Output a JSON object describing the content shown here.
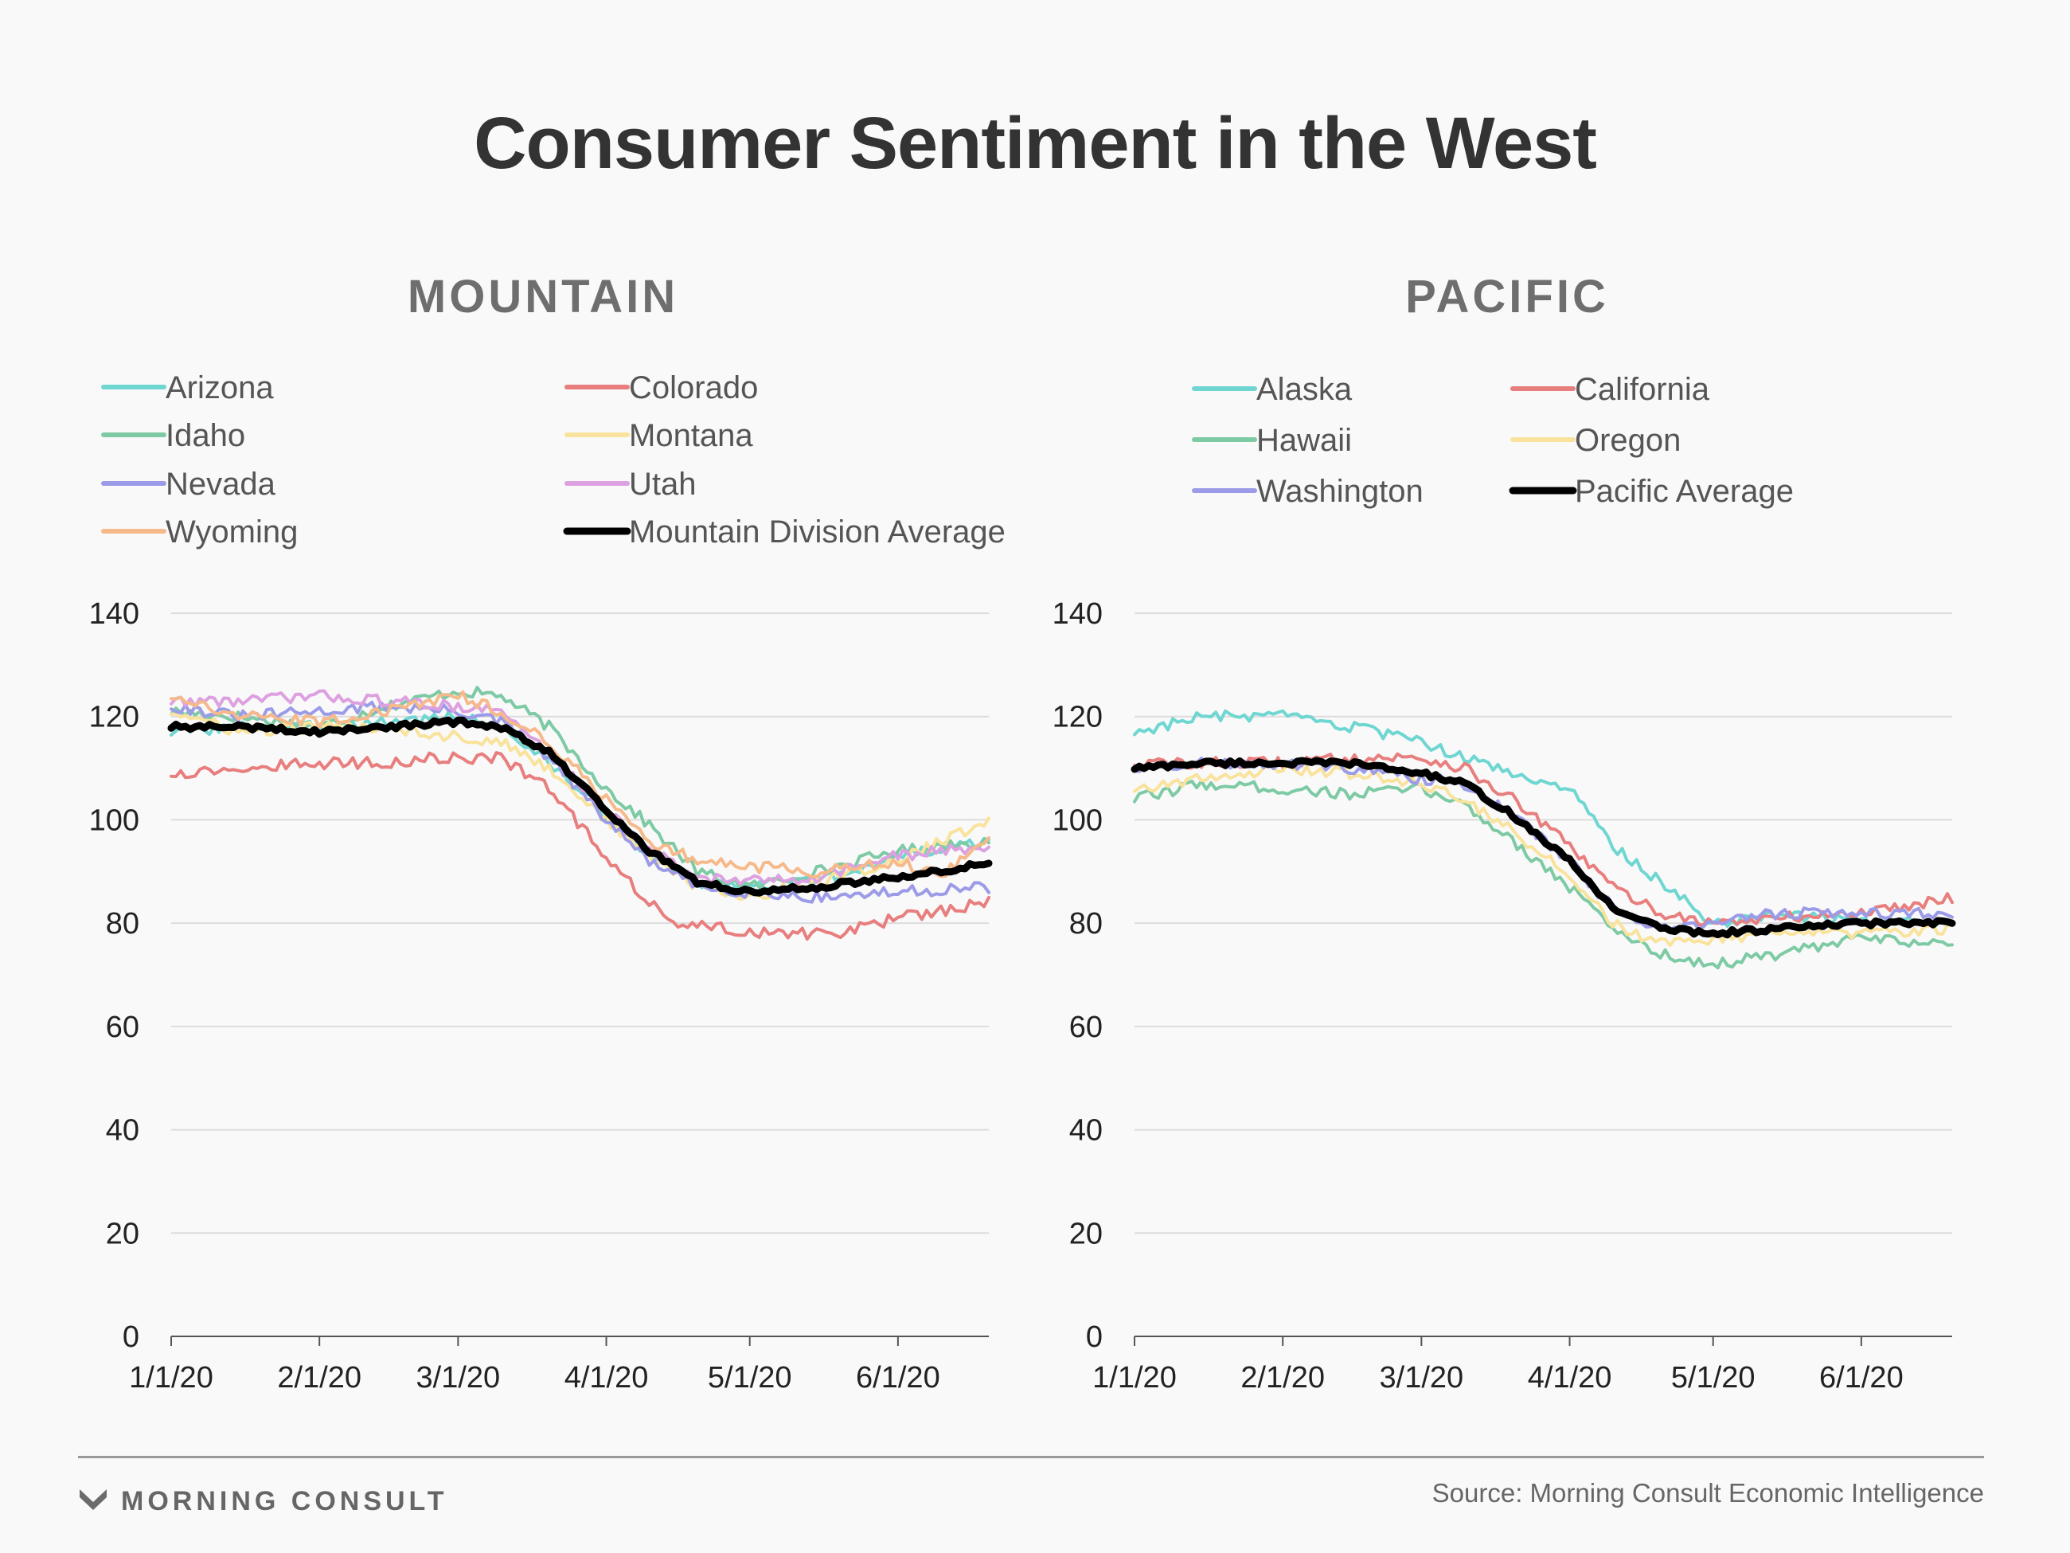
{
  "title": "Consumer Sentiment in the West",
  "footer": {
    "brand": "MORNING CONSULT",
    "source": "Source: Morning Consult Economic Intelligence"
  },
  "chart_data": [
    {
      "type": "line",
      "title": "MOUNTAIN",
      "x_type": "date",
      "xlim": [
        "1/1/20",
        "6/20/20"
      ],
      "x_ticks": [
        "1/1/20",
        "2/1/20",
        "3/1/20",
        "4/1/20",
        "5/1/20",
        "6/1/20"
      ],
      "ylim": [
        0,
        140
      ],
      "y_ticks": [
        0,
        20,
        40,
        60,
        80,
        100,
        120,
        140
      ],
      "grid": true,
      "legend_position": "top",
      "series": [
        {
          "name": "Arizona",
          "color": "#6fd6d1",
          "width": 4,
          "points": [
            [
              "1/1/20",
              117
            ],
            [
              "1/15/20",
              118
            ],
            [
              "2/1/20",
              118
            ],
            [
              "2/15/20",
              119
            ],
            [
              "3/1/20",
              120
            ],
            [
              "3/10/20",
              118
            ],
            [
              "3/20/20",
              111
            ],
            [
              "4/1/20",
              101
            ],
            [
              "4/10/20",
              93
            ],
            [
              "4/20/20",
              88
            ],
            [
              "5/1/20",
              87
            ],
            [
              "5/15/20",
              88
            ],
            [
              "6/1/20",
              93
            ],
            [
              "6/20/20",
              96
            ]
          ]
        },
        {
          "name": "Colorado",
          "color": "#e87e7e",
          "width": 4,
          "points": [
            [
              "1/1/20",
              109
            ],
            [
              "1/15/20",
              110
            ],
            [
              "2/1/20",
              111
            ],
            [
              "2/15/20",
              111
            ],
            [
              "2/25/20",
              112
            ],
            [
              "3/10/20",
              112
            ],
            [
              "3/20/20",
              106
            ],
            [
              "4/1/20",
              93
            ],
            [
              "4/10/20",
              84
            ],
            [
              "4/15/20",
              80
            ],
            [
              "4/25/20",
              79
            ],
            [
              "5/5/20",
              78
            ],
            [
              "5/20/20",
              78
            ],
            [
              "6/1/20",
              81
            ],
            [
              "6/20/20",
              84
            ]
          ]
        },
        {
          "name": "Idaho",
          "color": "#7dcaa4",
          "width": 4,
          "points": [
            [
              "1/1/20",
              121
            ],
            [
              "1/15/20",
              120
            ],
            [
              "2/1/20",
              118
            ],
            [
              "2/15/20",
              122
            ],
            [
              "3/1/20",
              125
            ],
            [
              "3/10/20",
              124
            ],
            [
              "3/20/20",
              118
            ],
            [
              "4/1/20",
              106
            ],
            [
              "4/10/20",
              99
            ],
            [
              "4/20/20",
              90
            ],
            [
              "5/1/20",
              87
            ],
            [
              "5/15/20",
              90
            ],
            [
              "6/1/20",
              94
            ],
            [
              "6/20/20",
              96
            ]
          ]
        },
        {
          "name": "Montana",
          "color": "#f9e39c",
          "width": 4,
          "points": [
            [
              "1/1/20",
              121
            ],
            [
              "1/15/20",
              117
            ],
            [
              "2/1/20",
              118
            ],
            [
              "2/15/20",
              118
            ],
            [
              "3/1/20",
              116
            ],
            [
              "3/10/20",
              115
            ],
            [
              "3/20/20",
              110
            ],
            [
              "4/1/20",
              100
            ],
            [
              "4/10/20",
              93
            ],
            [
              "4/20/20",
              87
            ],
            [
              "5/1/20",
              85
            ],
            [
              "5/15/20",
              88
            ],
            [
              "6/1/20",
              92
            ],
            [
              "6/20/20",
              100
            ]
          ]
        },
        {
          "name": "Nevada",
          "color": "#9b9be8",
          "width": 4,
          "points": [
            [
              "1/1/20",
              122
            ],
            [
              "1/15/20",
              120
            ],
            [
              "2/1/20",
              121
            ],
            [
              "2/15/20",
              122
            ],
            [
              "3/1/20",
              121
            ],
            [
              "3/10/20",
              119
            ],
            [
              "3/20/20",
              112
            ],
            [
              "4/1/20",
              100
            ],
            [
              "4/10/20",
              92
            ],
            [
              "4/20/20",
              87
            ],
            [
              "5/1/20",
              86
            ],
            [
              "5/15/20",
              85
            ],
            [
              "6/1/20",
              86
            ],
            [
              "6/20/20",
              87
            ]
          ]
        },
        {
          "name": "Utah",
          "color": "#dda0e0",
          "width": 4,
          "points": [
            [
              "1/1/20",
              123
            ],
            [
              "1/15/20",
              123
            ],
            [
              "2/1/20",
              124
            ],
            [
              "2/15/20",
              123
            ],
            [
              "3/1/20",
              122
            ],
            [
              "3/10/20",
              121
            ],
            [
              "3/20/20",
              113
            ],
            [
              "4/1/20",
              102
            ],
            [
              "4/10/20",
              94
            ],
            [
              "4/20/20",
              89
            ],
            [
              "5/1/20",
              88
            ],
            [
              "5/15/20",
              89
            ],
            [
              "6/1/20",
              93
            ],
            [
              "6/20/20",
              95
            ]
          ]
        },
        {
          "name": "Wyoming",
          "color": "#f6b98a",
          "width": 4,
          "points": [
            [
              "1/1/20",
              124
            ],
            [
              "1/15/20",
              120
            ],
            [
              "2/1/20",
              119
            ],
            [
              "2/15/20",
              121
            ],
            [
              "3/1/20",
              124
            ],
            [
              "3/10/20",
              121
            ],
            [
              "3/20/20",
              115
            ],
            [
              "4/1/20",
              104
            ],
            [
              "4/10/20",
              96
            ],
            [
              "4/20/20",
              92
            ],
            [
              "5/1/20",
              91
            ],
            [
              "5/15/20",
              90
            ],
            [
              "6/1/20",
              92
            ],
            [
              "6/10/20",
              89
            ],
            [
              "6/20/20",
              96
            ]
          ]
        },
        {
          "name": "Mountain Division Average",
          "color": "#000000",
          "width": 9,
          "points": [
            [
              "1/1/20",
              118
            ],
            [
              "1/15/20",
              118
            ],
            [
              "2/1/20",
              117
            ],
            [
              "2/15/20",
              118
            ],
            [
              "3/1/20",
              119
            ],
            [
              "3/10/20",
              118
            ],
            [
              "3/20/20",
              113
            ],
            [
              "4/1/20",
              102
            ],
            [
              "4/10/20",
              94
            ],
            [
              "4/20/20",
              88
            ],
            [
              "5/1/20",
              86
            ],
            [
              "5/15/20",
              87
            ],
            [
              "6/1/20",
              89
            ],
            [
              "6/10/20",
              90
            ],
            [
              "6/20/20",
              92
            ]
          ]
        }
      ]
    },
    {
      "type": "line",
      "title": "PACIFIC",
      "x_type": "date",
      "xlim": [
        "1/1/20",
        "6/20/20"
      ],
      "x_ticks": [
        "1/1/20",
        "2/1/20",
        "3/1/20",
        "4/1/20",
        "5/1/20",
        "6/1/20"
      ],
      "ylim": [
        0,
        140
      ],
      "y_ticks": [
        0,
        20,
        40,
        60,
        80,
        100,
        120,
        140
      ],
      "grid": true,
      "legend_position": "top",
      "series": [
        {
          "name": "Alaska",
          "color": "#6fd6d1",
          "width": 4,
          "points": [
            [
              "1/1/20",
              117
            ],
            [
              "1/15/20",
              120
            ],
            [
              "2/1/20",
              120
            ],
            [
              "2/15/20",
              118
            ],
            [
              "3/1/20",
              115
            ],
            [
              "3/10/20",
              112
            ],
            [
              "3/20/20",
              109
            ],
            [
              "4/1/20",
              106
            ],
            [
              "4/10/20",
              95
            ],
            [
              "4/20/20",
              88
            ],
            [
              "5/1/20",
              80
            ],
            [
              "5/15/20",
              82
            ],
            [
              "6/1/20",
              80
            ],
            [
              "6/20/20",
              80
            ]
          ]
        },
        {
          "name": "California",
          "color": "#e87e7e",
          "width": 4,
          "points": [
            [
              "1/1/20",
              111
            ],
            [
              "1/15/20",
              111
            ],
            [
              "2/1/20",
              111
            ],
            [
              "2/15/20",
              112
            ],
            [
              "3/1/20",
              112
            ],
            [
              "3/10/20",
              110
            ],
            [
              "3/20/20",
              104
            ],
            [
              "4/1/20",
              95
            ],
            [
              "4/10/20",
              87
            ],
            [
              "4/20/20",
              82
            ],
            [
              "5/1/20",
              80
            ],
            [
              "5/15/20",
              81
            ],
            [
              "6/1/20",
              82
            ],
            [
              "6/20/20",
              85
            ]
          ]
        },
        {
          "name": "Hawaii",
          "color": "#7dcaa4",
          "width": 4,
          "points": [
            [
              "1/1/20",
              104
            ],
            [
              "1/15/20",
              107
            ],
            [
              "2/1/20",
              106
            ],
            [
              "2/15/20",
              105
            ],
            [
              "3/1/20",
              106
            ],
            [
              "3/10/20",
              103
            ],
            [
              "3/20/20",
              96
            ],
            [
              "4/1/20",
              87
            ],
            [
              "4/10/20",
              79
            ],
            [
              "4/20/20",
              74
            ],
            [
              "5/1/20",
              72
            ],
            [
              "5/15/20",
              74
            ],
            [
              "6/1/20",
              77
            ],
            [
              "6/20/20",
              76
            ]
          ]
        },
        {
          "name": "Oregon",
          "color": "#f9e39c",
          "width": 4,
          "points": [
            [
              "1/1/20",
              106
            ],
            [
              "1/15/20",
              108
            ],
            [
              "2/1/20",
              110
            ],
            [
              "2/15/20",
              109
            ],
            [
              "3/1/20",
              107
            ],
            [
              "3/10/20",
              104
            ],
            [
              "3/20/20",
              98
            ],
            [
              "4/1/20",
              89
            ],
            [
              "4/10/20",
              80
            ],
            [
              "4/20/20",
              76
            ],
            [
              "5/1/20",
              77
            ],
            [
              "5/15/20",
              78
            ],
            [
              "6/1/20",
              78
            ],
            [
              "6/20/20",
              79
            ]
          ]
        },
        {
          "name": "Washington",
          "color": "#9b9be8",
          "width": 4,
          "points": [
            [
              "1/1/20",
              110
            ],
            [
              "1/15/20",
              111
            ],
            [
              "2/1/20",
              111
            ],
            [
              "2/15/20",
              110
            ],
            [
              "3/1/20",
              108
            ],
            [
              "3/10/20",
              107
            ],
            [
              "3/20/20",
              101
            ],
            [
              "4/1/20",
              92
            ],
            [
              "4/10/20",
              83
            ],
            [
              "4/20/20",
              79
            ],
            [
              "5/1/20",
              80
            ],
            [
              "5/15/20",
              82
            ],
            [
              "6/1/20",
              82
            ],
            [
              "6/20/20",
              82
            ]
          ]
        },
        {
          "name": "Pacific Average",
          "color": "#000000",
          "width": 9,
          "points": [
            [
              "1/1/20",
              110
            ],
            [
              "1/15/20",
              111
            ],
            [
              "2/1/20",
              111
            ],
            [
              "2/15/20",
              111
            ],
            [
              "3/1/20",
              109
            ],
            [
              "3/10/20",
              107
            ],
            [
              "3/20/20",
              101
            ],
            [
              "4/1/20",
              92
            ],
            [
              "4/10/20",
              83
            ],
            [
              "4/20/20",
              79
            ],
            [
              "5/1/20",
              78
            ],
            [
              "5/15/20",
              79
            ],
            [
              "6/1/20",
              80
            ],
            [
              "6/20/20",
              80
            ]
          ]
        }
      ]
    }
  ]
}
